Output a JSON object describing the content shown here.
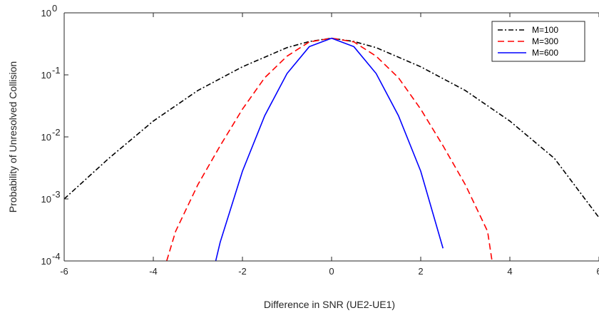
{
  "chart_data": {
    "type": "line",
    "xlabel": "Difference in SNR (UE2-UE1)",
    "ylabel": "Probability of Unresolved Collision",
    "xlim": [
      -6,
      6
    ],
    "ylim": [
      0.0001,
      1
    ],
    "yscale": "log",
    "x_ticks": [
      -6,
      -4,
      -2,
      0,
      2,
      4,
      6
    ],
    "y_ticks": [
      {
        "value": 0.0001,
        "base": "10",
        "exp": "-4"
      },
      {
        "value": 0.001,
        "base": "10",
        "exp": "-3"
      },
      {
        "value": 0.01,
        "base": "10",
        "exp": "-2"
      },
      {
        "value": 0.1,
        "base": "10",
        "exp": "-1"
      },
      {
        "value": 1,
        "base": "10",
        "exp": "0"
      }
    ],
    "grid": false,
    "legend_position": "top-right",
    "series": [
      {
        "name": "M=100",
        "color": "#000000",
        "dash": "dash-dot",
        "x": [
          -6,
          -5,
          -4,
          -3,
          -2,
          -1,
          -0.5,
          0,
          0.5,
          1,
          2,
          3,
          4,
          5,
          6
        ],
        "y": [
          0.001,
          0.0045,
          0.018,
          0.056,
          0.135,
          0.275,
          0.345,
          0.39,
          0.345,
          0.275,
          0.135,
          0.056,
          0.018,
          0.0045,
          0.0005
        ]
      },
      {
        "name": "M=300",
        "color": "#ff0000",
        "dash": "dashed",
        "x": [
          -3.7,
          -3.5,
          -3,
          -2.5,
          -2,
          -1.5,
          -1,
          -0.5,
          0,
          0.5,
          1,
          1.5,
          2,
          2.5,
          3,
          3.5,
          3.6
        ],
        "y": [
          0.0001,
          0.0003,
          0.0017,
          0.0072,
          0.028,
          0.09,
          0.2,
          0.34,
          0.39,
          0.34,
          0.2,
          0.09,
          0.028,
          0.0072,
          0.0017,
          0.0003,
          0.0001
        ]
      },
      {
        "name": "M=600",
        "color": "#0000ff",
        "dash": "solid",
        "x": [
          -2.6,
          -2.5,
          -2,
          -1.5,
          -1,
          -0.5,
          0,
          0.5,
          1,
          1.5,
          2,
          2.5
        ],
        "y": [
          0.0001,
          0.0002,
          0.0028,
          0.022,
          0.105,
          0.285,
          0.39,
          0.285,
          0.105,
          0.022,
          0.0028,
          0.00016
        ]
      }
    ]
  }
}
